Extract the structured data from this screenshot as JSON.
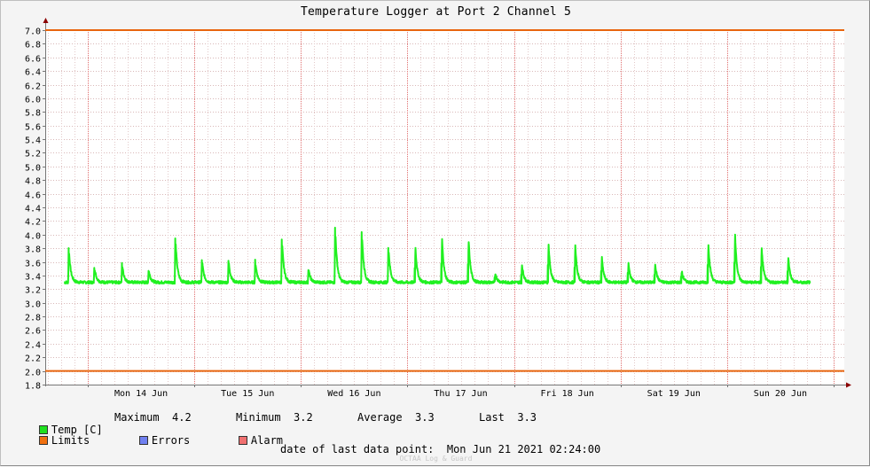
{
  "chart_data": {
    "type": "line",
    "title": "Temperature Logger at Port 2 Channel 5",
    "xlabel": "",
    "ylabel": "",
    "ylim": [
      1.8,
      7.0
    ],
    "yticks": [
      "7.0",
      "6.8",
      "6.6",
      "6.4",
      "6.2",
      "6.0",
      "5.8",
      "5.6",
      "5.4",
      "5.2",
      "5.0",
      "4.8",
      "4.6",
      "4.4",
      "4.2",
      "4.0",
      "3.8",
      "3.6",
      "3.4",
      "3.2",
      "3.0",
      "2.8",
      "2.6",
      "2.4",
      "2.2",
      "2.0",
      "1.8"
    ],
    "xlim_days": [
      13.6,
      21.1
    ],
    "day_labels": [
      "Mon 14 Jun",
      "Tue 15 Jun",
      "Wed 16 Jun",
      "Thu 17 Jun",
      "Fri 18 Jun",
      "Sat 19 Jun",
      "Sun 20 Jun"
    ],
    "grid": true,
    "limits": {
      "name": "Limits",
      "upper": 7.0,
      "lower": 2.0,
      "color": "#e8650e"
    },
    "series": [
      {
        "name": "Temp [C]",
        "color": "#20f020",
        "baseline": 3.3,
        "spikes": [
          {
            "day": 13.82,
            "value": 3.85
          },
          {
            "day": 14.06,
            "value": 3.55
          },
          {
            "day": 14.32,
            "value": 3.6
          },
          {
            "day": 14.57,
            "value": 3.5
          },
          {
            "day": 14.82,
            "value": 4.02
          },
          {
            "day": 15.07,
            "value": 3.66
          },
          {
            "day": 15.32,
            "value": 3.65
          },
          {
            "day": 15.57,
            "value": 3.65
          },
          {
            "day": 15.82,
            "value": 4.0
          },
          {
            "day": 16.07,
            "value": 3.51
          },
          {
            "day": 16.32,
            "value": 4.18
          },
          {
            "day": 16.57,
            "value": 4.13
          },
          {
            "day": 16.82,
            "value": 3.88
          },
          {
            "day": 17.07,
            "value": 3.96
          },
          {
            "day": 17.32,
            "value": 4.13
          },
          {
            "day": 17.57,
            "value": 4.1
          },
          {
            "day": 17.82,
            "value": 3.47
          },
          {
            "day": 18.07,
            "value": 3.64
          },
          {
            "day": 18.32,
            "value": 4.02
          },
          {
            "day": 18.57,
            "value": 4.0
          },
          {
            "day": 18.82,
            "value": 3.77
          },
          {
            "day": 19.07,
            "value": 3.66
          },
          {
            "day": 19.32,
            "value": 3.66
          },
          {
            "day": 19.57,
            "value": 3.51
          },
          {
            "day": 19.82,
            "value": 4.04
          },
          {
            "day": 20.07,
            "value": 4.2
          },
          {
            "day": 20.32,
            "value": 3.95
          },
          {
            "day": 20.57,
            "value": 3.78
          }
        ]
      }
    ]
  },
  "legend": {
    "temp_label": "Temp [C]",
    "limits_label": "Limits",
    "errors_label": "Errors",
    "alarm_label": "Alarm",
    "temp_color": "#20e020",
    "limits_color": "#f07010",
    "errors_color": "#7080f0",
    "alarm_color": "#f07070"
  },
  "stats": {
    "maximum_label": "Maximum",
    "maximum_value": "4.2",
    "minimum_label": "Minimum",
    "minimum_value": "3.2",
    "average_label": "Average",
    "average_value": "3.3",
    "last_label": "Last",
    "last_value": "3.3"
  },
  "footer": {
    "last_point_label": "date of last data point:",
    "last_point_value": "Mon Jun 21 2021 02:24:00",
    "brand": "OCTAA Log & Guard"
  }
}
